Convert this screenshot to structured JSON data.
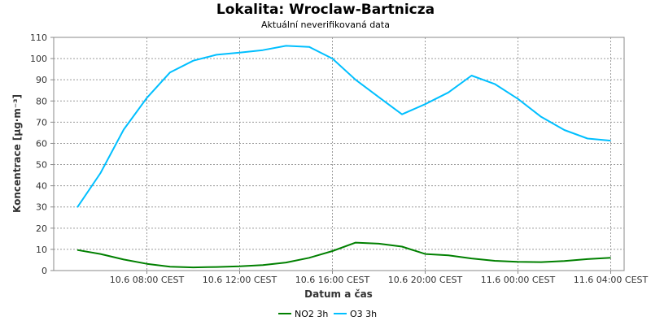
{
  "chart_data": {
    "type": "line",
    "title": "Lokalita: Wroclaw-Bartnicza",
    "subtitle": "Aktuální neverifikovaná data",
    "xlabel": "Datum a čas",
    "ylabel": "Koncentrace [µg·m⁻³]",
    "ylim": [
      0,
      110
    ],
    "yticks": [
      0,
      10,
      20,
      30,
      40,
      50,
      60,
      70,
      80,
      90,
      100,
      110
    ],
    "xticks": [
      "10.6 08:00 CEST",
      "10.6 12:00 CEST",
      "10.6 16:00 CEST",
      "10.6 20:00 CEST",
      "11.6 00:00 CEST",
      "11.6 04:00 CEST"
    ],
    "x": [
      "10.6 05:00",
      "10.6 06:00",
      "10.6 07:00",
      "10.6 08:00",
      "10.6 09:00",
      "10.6 10:00",
      "10.6 11:00",
      "10.6 12:00",
      "10.6 13:00",
      "10.6 14:00",
      "10.6 15:00",
      "10.6 16:00",
      "10.6 17:00",
      "10.6 18:00",
      "10.6 19:00",
      "10.6 20:00",
      "10.6 21:00",
      "10.6 22:00",
      "10.6 23:00",
      "11.6 00:00",
      "11.6 01:00",
      "11.6 02:00",
      "11.6 03:00",
      "11.6 04:00",
      "11.6 05:00"
    ],
    "series": [
      {
        "name": "NO2 3h",
        "color": "#008000",
        "values": [
          9.7,
          7.8,
          5.2,
          3.2,
          1.8,
          1.5,
          1.7,
          2.0,
          2.6,
          3.8,
          6.0,
          9.2,
          13.2,
          12.7,
          11.3,
          7.8,
          7.2,
          5.7,
          4.6,
          4.1,
          4.0,
          4.5,
          5.4,
          6.0,
          null
        ],
        "series_note": "values aligned to x"
      },
      {
        "name": "O3 3h",
        "color": "#00bfff",
        "values": [
          29.8,
          46.0,
          66.5,
          81.5,
          93.5,
          99.0,
          101.8,
          102.8,
          104.0,
          106.0,
          105.5,
          100.0,
          90.0,
          81.8,
          73.7,
          78.5,
          84.0,
          92.0,
          88.0,
          81.0,
          72.5,
          66.3,
          62.3,
          61.3,
          null
        ]
      }
    ],
    "grid": true,
    "legend": "bottom-center"
  }
}
